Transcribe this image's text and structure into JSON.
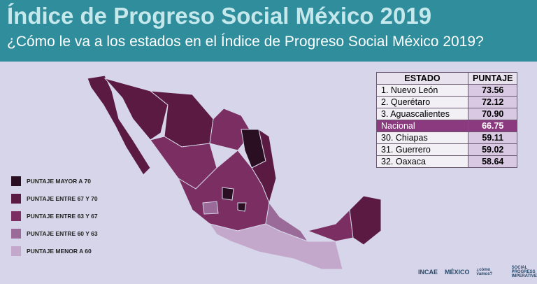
{
  "header": {
    "title": "Índice de Progreso Social México 2019",
    "subtitle": "¿Cómo le va a los estados en el Índice de Progreso Social México 2019?"
  },
  "legend": {
    "items": [
      {
        "label": "PUNTAJE MAYOR A 70",
        "color": "#2a0f22"
      },
      {
        "label": "PUNTAJE ENTRE 67 Y 70",
        "color": "#5a1a42"
      },
      {
        "label": "PUNTAJE ENTRE 63 Y 67",
        "color": "#7a2e62"
      },
      {
        "label": "PUNTAJE ENTRE 60 Y 63",
        "color": "#9a6a98"
      },
      {
        "label": "PUNTAJE MENOR A 60",
        "color": "#c4a8cc"
      }
    ]
  },
  "table": {
    "columns": [
      "ESTADO",
      "PUNTAJE"
    ],
    "rows": [
      [
        "1. Nuevo León",
        "73.56"
      ],
      [
        "2. Querétaro",
        "72.12"
      ],
      [
        "3. Aguascalientes",
        "70.90"
      ],
      [
        "Nacional",
        "66.75"
      ],
      [
        "30. Chiapas",
        "59.11"
      ],
      [
        "31. Guerrero",
        "59.02"
      ],
      [
        "32. Oaxaca",
        "58.64"
      ]
    ]
  },
  "footer": {
    "logos": [
      "INCAE",
      "MÉXICO",
      "¿cómo vamos?",
      "SOCIAL PROGRESS IMPERATIVE"
    ]
  }
}
